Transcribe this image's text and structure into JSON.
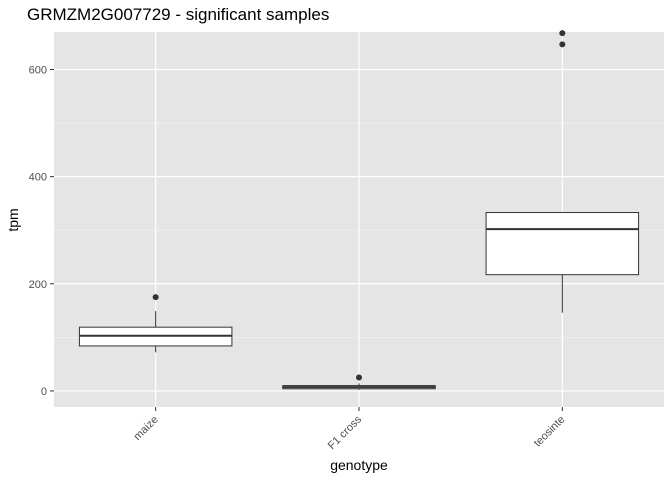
{
  "chart_data": {
    "type": "boxplot",
    "title": "GRMZM2G007729 - significant samples",
    "xlabel": "genotype",
    "ylabel": "tpm",
    "ylim": [
      -30,
      670
    ],
    "yticks": [
      0,
      200,
      400,
      600
    ],
    "categories": [
      "maize",
      "F1 cross",
      "teosinte"
    ],
    "boxes": [
      {
        "category": "maize",
        "whisker_low": 72,
        "q1": 84,
        "median": 103,
        "q3": 119,
        "whisker_high": 149,
        "outliers": [
          175
        ]
      },
      {
        "category": "F1 cross",
        "whisker_low": 2,
        "q1": 4,
        "median": 7,
        "q3": 10,
        "whisker_high": 14,
        "outliers": [
          25
        ]
      },
      {
        "category": "teosinte",
        "whisker_low": 146,
        "q1": 217,
        "median": 302,
        "q3": 333,
        "whisker_high": 333,
        "outliers": [
          647,
          668
        ]
      }
    ],
    "grid": true,
    "legend": "none",
    "colors": {
      "panel": "#e5e5e5",
      "grid_major": "#ffffff",
      "box_fill": "#ffffff",
      "box_line": "#333333"
    }
  }
}
